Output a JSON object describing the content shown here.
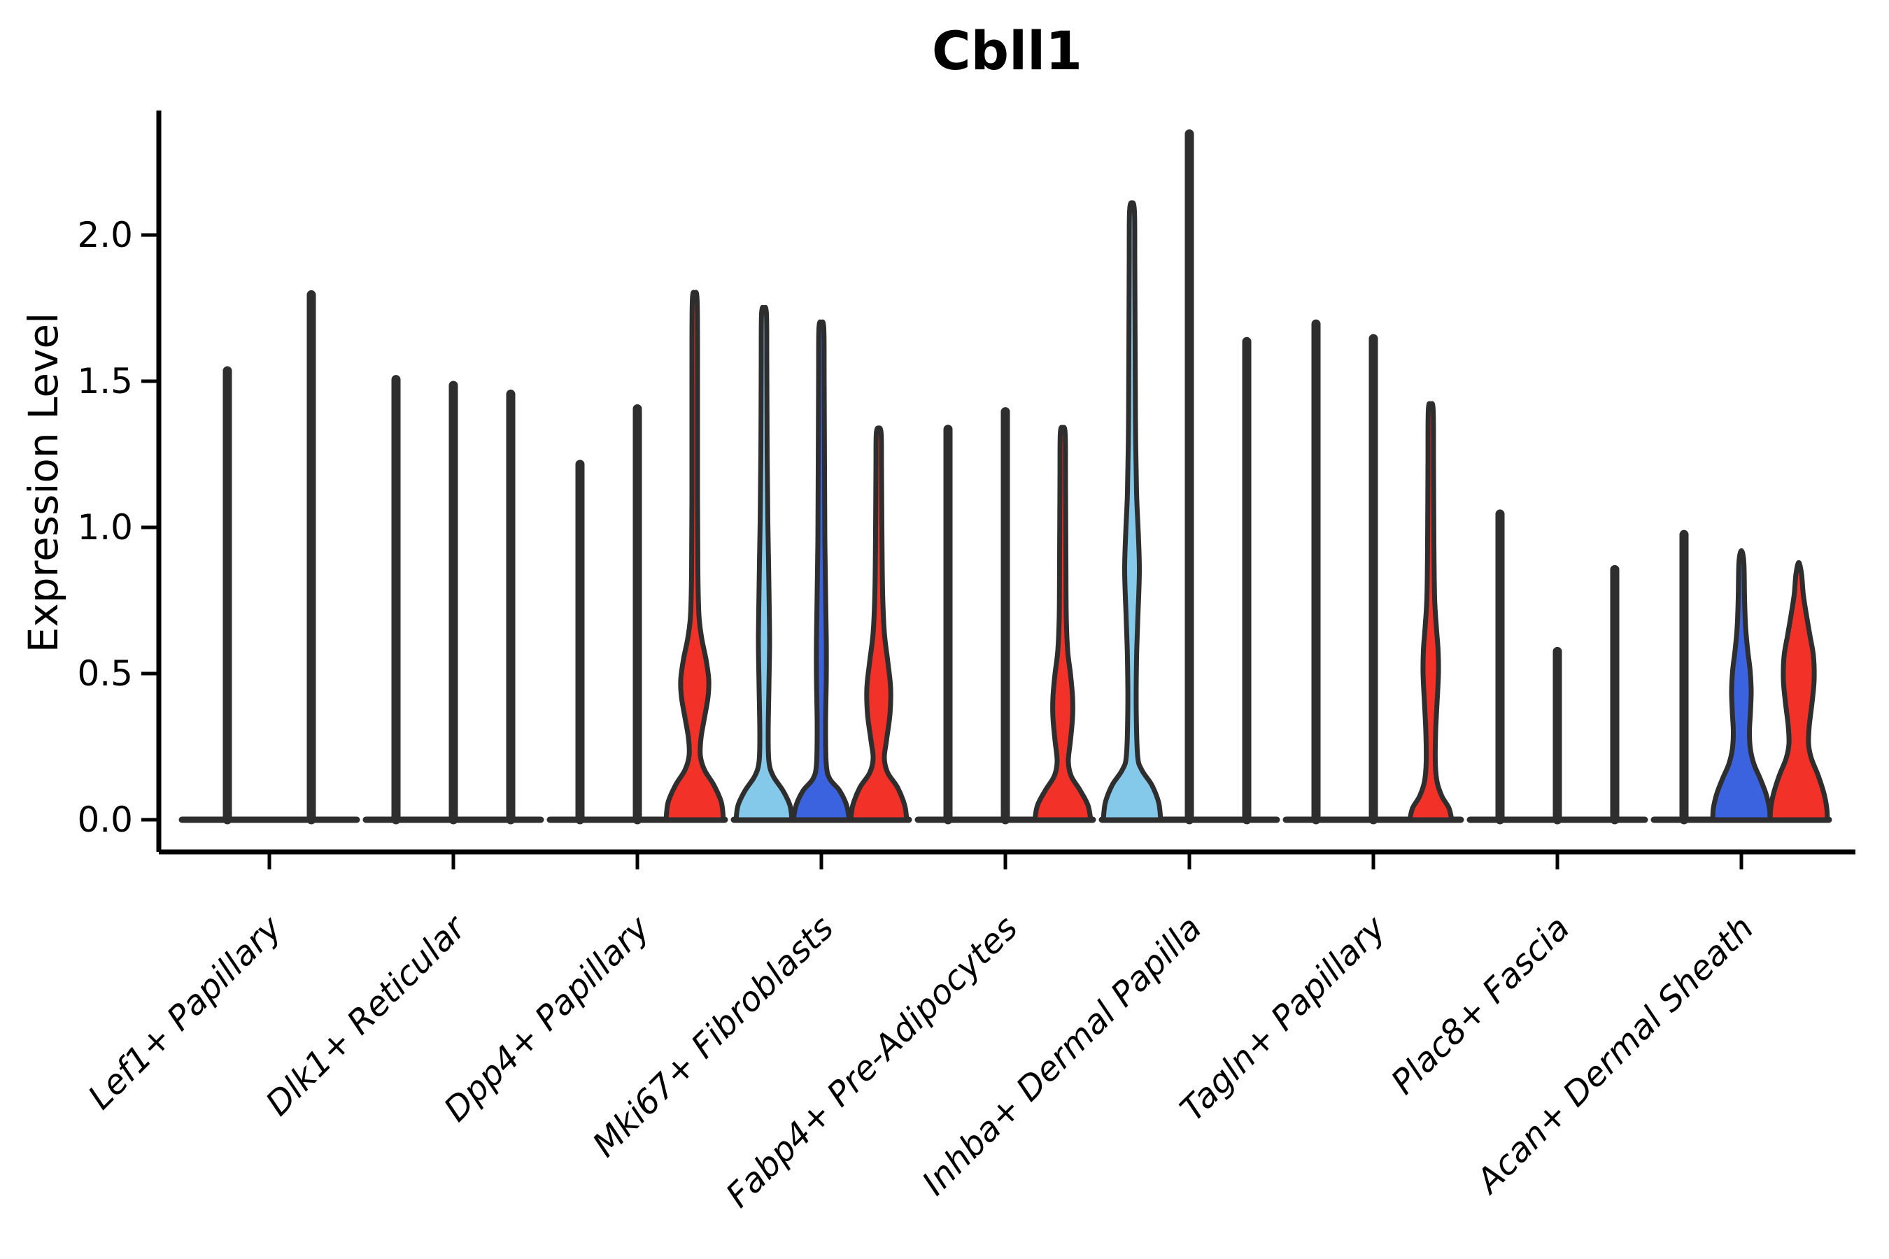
{
  "title": "Cbll1",
  "y_axis": {
    "label": "Expression Level",
    "ticks": [
      "0.0",
      "0.5",
      "1.0",
      "1.5",
      "2.0"
    ]
  },
  "chart_data": {
    "type": "violin",
    "title": "Cbll1",
    "xlabel": "",
    "ylabel": "Expression Level",
    "ylim": [
      -0.11,
      2.43
    ],
    "yticks": [
      0.0,
      0.5,
      1.0,
      1.5,
      2.0
    ],
    "grid": false,
    "legend": "none",
    "colors": {
      "light_blue": "#84C9EA",
      "royal_blue": "#3C63DF",
      "red": "#F23228",
      "line": "#2E2E2E"
    },
    "categories": [
      "Lef1+ Papillary",
      "Dlk1+ Reticular",
      "Dpp4+ Papillary",
      "Mki67+ Fibroblasts",
      "Fabp4+ Pre-Adipocytes",
      "Inhba+ Dermal Papilla",
      "Tagln+ Papillary",
      "Plac8+ Fascia",
      "Acan+ Dermal Sheath"
    ],
    "groups": [
      {
        "label": "Lef1+ Papillary",
        "violins": [
          {
            "offset": -60,
            "kind": "spike",
            "color": "line",
            "max": 1.55
          },
          {
            "offset": 60,
            "kind": "spike",
            "color": "line",
            "max": 1.81
          }
        ]
      },
      {
        "label": "Dlk1+ Reticular",
        "violins": [
          {
            "offset": -82,
            "kind": "spike",
            "color": "line",
            "max": 1.52
          },
          {
            "offset": 0,
            "kind": "spike",
            "color": "line",
            "max": 1.5
          },
          {
            "offset": 82,
            "kind": "spike",
            "color": "line",
            "max": 1.47
          }
        ]
      },
      {
        "label": "Dpp4+ Papillary",
        "violins": [
          {
            "offset": -82,
            "kind": "spike",
            "color": "line",
            "max": 1.23
          },
          {
            "offset": 0,
            "kind": "spike",
            "color": "line",
            "max": 1.42
          },
          {
            "offset": 82,
            "kind": "shaped",
            "color": "red",
            "max": 1.8,
            "profile": [
              [
                0,
                41
              ],
              [
                0.06,
                38
              ],
              [
                0.12,
                27
              ],
              [
                0.17,
                14
              ],
              [
                0.22,
                8
              ],
              [
                0.28,
                9
              ],
              [
                0.35,
                14
              ],
              [
                0.42,
                19
              ],
              [
                0.48,
                20
              ],
              [
                0.55,
                16
              ],
              [
                0.62,
                10
              ],
              [
                0.7,
                6
              ],
              [
                0.85,
                4.5
              ],
              [
                1.1,
                4
              ],
              [
                1.5,
                4
              ],
              [
                1.77,
                3.5
              ],
              [
                1.8,
                0
              ]
            ]
          }
        ]
      },
      {
        "label": "Mki67+ Fibroblasts",
        "violins": [
          {
            "offset": -82,
            "kind": "shaped",
            "color": "light_blue",
            "max": 1.75,
            "profile": [
              [
                0,
                40
              ],
              [
                0.05,
                37
              ],
              [
                0.1,
                27
              ],
              [
                0.15,
                13
              ],
              [
                0.2,
                7
              ],
              [
                0.3,
                6
              ],
              [
                0.45,
                7
              ],
              [
                0.6,
                8
              ],
              [
                0.72,
                7.5
              ],
              [
                0.88,
                6.5
              ],
              [
                1.02,
                5.5
              ],
              [
                1.25,
                4.5
              ],
              [
                1.55,
                4
              ],
              [
                1.73,
                3.5
              ],
              [
                1.75,
                0
              ]
            ]
          },
          {
            "offset": 0,
            "kind": "shaped",
            "color": "royal_blue",
            "max": 1.7,
            "profile": [
              [
                0,
                40
              ],
              [
                0.05,
                36
              ],
              [
                0.1,
                26
              ],
              [
                0.14,
                12
              ],
              [
                0.19,
                7
              ],
              [
                0.32,
                6
              ],
              [
                0.48,
                7
              ],
              [
                0.62,
                7
              ],
              [
                0.78,
                6
              ],
              [
                0.95,
                5
              ],
              [
                1.2,
                4.5
              ],
              [
                1.5,
                4
              ],
              [
                1.68,
                3.5
              ],
              [
                1.7,
                0
              ]
            ]
          },
          {
            "offset": 82,
            "kind": "shaped",
            "color": "red",
            "max": 1.34,
            "profile": [
              [
                0,
                40
              ],
              [
                0.05,
                37
              ],
              [
                0.11,
                27
              ],
              [
                0.16,
                13
              ],
              [
                0.21,
                8
              ],
              [
                0.27,
                11
              ],
              [
                0.36,
                16
              ],
              [
                0.45,
                17
              ],
              [
                0.54,
                13
              ],
              [
                0.64,
                8
              ],
              [
                0.78,
                5.5
              ],
              [
                1.0,
                4.5
              ],
              [
                1.2,
                4
              ],
              [
                1.32,
                3.5
              ],
              [
                1.34,
                0
              ]
            ]
          }
        ]
      },
      {
        "label": "Fabp4+ Pre-Adipocytes",
        "violins": [
          {
            "offset": -82,
            "kind": "spike",
            "color": "line",
            "max": 1.35
          },
          {
            "offset": 0,
            "kind": "spike",
            "color": "line",
            "max": 1.41
          },
          {
            "offset": 82,
            "kind": "shaped",
            "color": "red",
            "max": 1.34,
            "profile": [
              [
                0,
                40
              ],
              [
                0.05,
                36
              ],
              [
                0.1,
                25
              ],
              [
                0.15,
                12
              ],
              [
                0.2,
                8
              ],
              [
                0.27,
                11
              ],
              [
                0.35,
                14
              ],
              [
                0.42,
                14
              ],
              [
                0.5,
                11
              ],
              [
                0.58,
                7
              ],
              [
                0.7,
                5
              ],
              [
                0.9,
                4.5
              ],
              [
                1.15,
                4
              ],
              [
                1.32,
                3.5
              ],
              [
                1.34,
                0
              ]
            ]
          }
        ]
      },
      {
        "label": "Inhba+ Dermal Papilla",
        "violins": [
          {
            "offset": -82,
            "kind": "shaped",
            "color": "light_blue",
            "max": 2.11,
            "profile": [
              [
                0,
                41
              ],
              [
                0.06,
                38
              ],
              [
                0.12,
                28
              ],
              [
                0.17,
                14
              ],
              [
                0.22,
                8
              ],
              [
                0.38,
                6
              ],
              [
                0.55,
                6.5
              ],
              [
                0.7,
                8.5
              ],
              [
                0.85,
                10.5
              ],
              [
                0.98,
                9
              ],
              [
                1.12,
                6.5
              ],
              [
                1.35,
                5
              ],
              [
                1.6,
                4.5
              ],
              [
                1.9,
                4
              ],
              [
                2.08,
                3.5
              ],
              [
                2.11,
                0
              ]
            ]
          },
          {
            "offset": 0,
            "kind": "spike",
            "color": "line",
            "max": 2.36
          },
          {
            "offset": 82,
            "kind": "spike",
            "color": "line",
            "max": 1.65
          }
        ]
      },
      {
        "label": "Tagln+ Papillary",
        "violins": [
          {
            "offset": -82,
            "kind": "spike",
            "color": "line",
            "max": 1.71
          },
          {
            "offset": 0,
            "kind": "spike",
            "color": "line",
            "max": 1.66
          },
          {
            "offset": 82,
            "kind": "shaped",
            "color": "red",
            "max": 1.42,
            "profile": [
              [
                0,
                30
              ],
              [
                0.04,
                26
              ],
              [
                0.08,
                16
              ],
              [
                0.13,
                9
              ],
              [
                0.2,
                6.5
              ],
              [
                0.3,
                7
              ],
              [
                0.4,
                9
              ],
              [
                0.5,
                11
              ],
              [
                0.58,
                10.5
              ],
              [
                0.66,
                8
              ],
              [
                0.76,
                5.5
              ],
              [
                0.95,
                4.5
              ],
              [
                1.2,
                4
              ],
              [
                1.4,
                3.5
              ],
              [
                1.42,
                0
              ]
            ]
          }
        ]
      },
      {
        "label": "Plac8+ Fascia",
        "violins": [
          {
            "offset": -82,
            "kind": "spike",
            "color": "line",
            "max": 1.06,
            "points": [
              0.92,
              0.88,
              0.62,
              0.4,
              0.35
            ]
          },
          {
            "offset": 0,
            "kind": "spike",
            "color": "line",
            "max": 0.59,
            "points": [
              0.49,
              0.47,
              0.43,
              0.38,
              0.35,
              0.28
            ]
          },
          {
            "offset": 82,
            "kind": "spike",
            "color": "line",
            "max": 0.87,
            "points": [
              0.52,
              0.47,
              0.4,
              0.33
            ]
          }
        ]
      },
      {
        "label": "Acan+ Dermal Sheath",
        "violins": [
          {
            "offset": -82,
            "kind": "spike",
            "color": "line",
            "max": 0.99,
            "points": [
              0.75,
              0.68,
              0.63,
              0.58,
              0.44,
              0.39
            ]
          },
          {
            "offset": 0,
            "kind": "shaped",
            "color": "royal_blue",
            "max": 0.92,
            "profile": [
              [
                0,
                41
              ],
              [
                0.04,
                40
              ],
              [
                0.09,
                35
              ],
              [
                0.14,
                27
              ],
              [
                0.19,
                18
              ],
              [
                0.24,
                13
              ],
              [
                0.3,
                11.5
              ],
              [
                0.37,
                13
              ],
              [
                0.44,
                14
              ],
              [
                0.51,
                12.5
              ],
              [
                0.58,
                9
              ],
              [
                0.66,
                6
              ],
              [
                0.76,
                4.5
              ],
              [
                0.88,
                3.5
              ],
              [
                0.92,
                0
              ]
            ]
          },
          {
            "offset": 82,
            "kind": "shaped",
            "color": "red",
            "max": 0.88,
            "profile": [
              [
                0,
                41
              ],
              [
                0.04,
                40
              ],
              [
                0.09,
                36
              ],
              [
                0.15,
                28
              ],
              [
                0.21,
                18
              ],
              [
                0.26,
                14
              ],
              [
                0.32,
                15
              ],
              [
                0.4,
                19
              ],
              [
                0.48,
                22
              ],
              [
                0.56,
                21
              ],
              [
                0.63,
                16
              ],
              [
                0.7,
                11
              ],
              [
                0.77,
                6.5
              ],
              [
                0.84,
                4
              ],
              [
                0.88,
                0
              ]
            ]
          }
        ]
      }
    ]
  }
}
